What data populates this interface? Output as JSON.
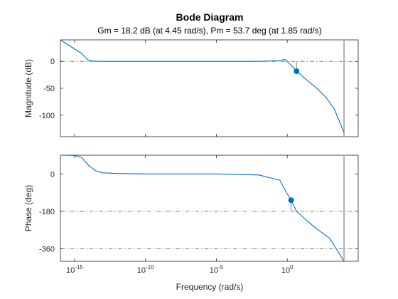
{
  "chart_data": {
    "type": "line",
    "title": "Bode Diagram",
    "subtitle": "Gm = 18.2 dB (at 4.45 rad/s),  Pm = 53.7 deg (at 1.85 rad/s)",
    "xlabel": "Frequency (rad/s)",
    "x_scale": "log",
    "xlim": [
      1e-16,
      100000.0
    ],
    "xticks": [
      {
        "exp": "-15",
        "value": 1e-15
      },
      {
        "exp": "-10",
        "value": 1e-10
      },
      {
        "exp": "-5",
        "value": 1e-05
      },
      {
        "exp": "0",
        "value": 1
      }
    ],
    "grid": false,
    "colors": {
      "line": "#0072bd",
      "marker": "#0072bd",
      "axis": "#262626",
      "reference": "#808080"
    },
    "panels": [
      {
        "id": "magnitude",
        "ylabel": "Magnitude (dB)",
        "ylim": [
          -140,
          40
        ],
        "yticks": [
          0,
          -50,
          -100
        ],
        "reference_line": {
          "y": 0,
          "style": "dash-dot"
        },
        "marker": {
          "x": 4.45,
          "y": -18.2,
          "label": "Gm = 18.2 dB"
        },
        "vertical_line_x": 10000,
        "series": {
          "x": [
            1e-16,
            3e-15,
            1e-14,
            3e-14,
            1e-13,
            1e-12,
            1e-10,
            1e-05,
            0.01,
            0.3,
            0.7,
            1,
            2,
            4.45,
            20,
            100,
            500,
            2000,
            10000
          ],
          "y": [
            40,
            15,
            1.5,
            0.1,
            0,
            0,
            0,
            0,
            0,
            1.5,
            3.5,
            0,
            -8,
            -18.2,
            -33,
            -48,
            -66,
            -88,
            -132
          ]
        }
      },
      {
        "id": "phase",
        "ylabel": "Phase (deg)",
        "ylim": [
          -420,
          90
        ],
        "yticks": [
          0,
          -180,
          -360
        ],
        "reference_lines": [
          {
            "y": -180,
            "style": "dash-dot"
          },
          {
            "y": -360,
            "style": "dash-dot"
          }
        ],
        "marker": {
          "x": 1.85,
          "y": -126.3,
          "label": "Pm = 53.7 deg"
        },
        "vertical_line_x": 10000,
        "series": {
          "x": [
            1e-16,
            1e-15,
            3e-15,
            1e-14,
            3e-14,
            1e-13,
            1e-12,
            1e-10,
            1e-05,
            0.01,
            0.3,
            0.8,
            1.85,
            4.45,
            20,
            100,
            1000,
            10000
          ],
          "y": [
            90,
            89,
            80,
            40,
            15,
            5,
            2,
            0,
            0,
            -5,
            -30,
            -85,
            -126.3,
            -180,
            -220,
            -260,
            -310,
            -420
          ]
        }
      }
    ]
  }
}
